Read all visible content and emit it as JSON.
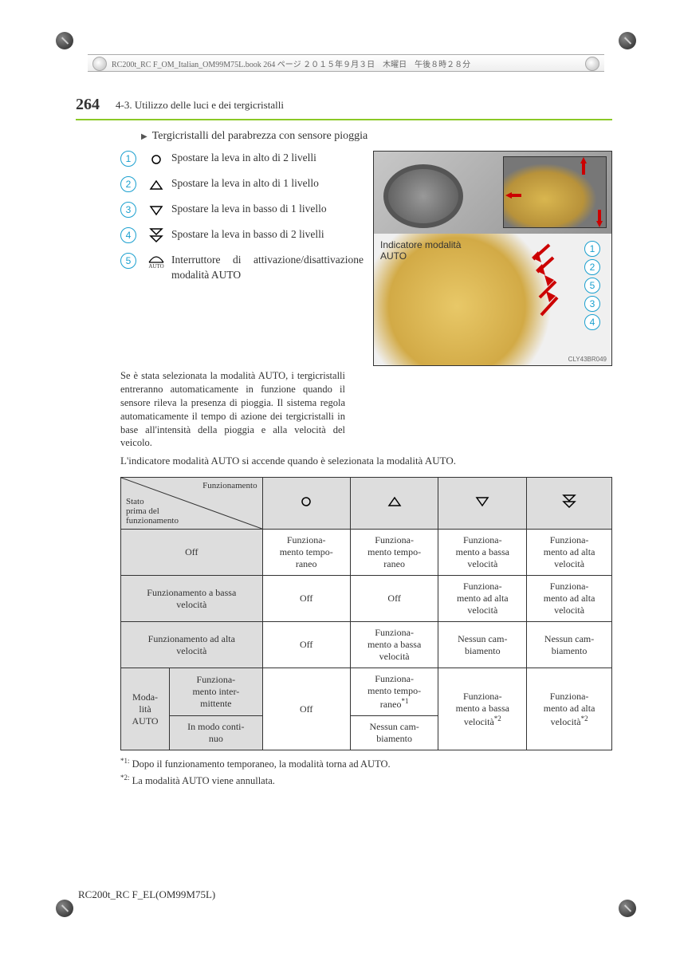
{
  "meta": {
    "print_header": "RC200t_RC F_OM_Italian_OM99M75L.book  264 ページ  ２０１５年９月３日　木曜日　午後８時２８分",
    "footer": "RC200t_RC F_EL(OM99M75L)",
    "figure_code": "CLY43BR049"
  },
  "header": {
    "page_num": "264",
    "section": "4-3. Utilizzo delle luci e dei tergicristalli"
  },
  "subtitle": "Tergicristalli del parabrezza con sensore pioggia",
  "steps": [
    {
      "n": "1",
      "sym": "circle",
      "text": "Spostare la leva in alto di 2 livelli"
    },
    {
      "n": "2",
      "sym": "tri_up",
      "text": "Spostare la leva in alto di 1 livello"
    },
    {
      "n": "3",
      "sym": "tri_down",
      "text": "Spostare la leva in basso di 1 livello"
    },
    {
      "n": "4",
      "sym": "dbl_down",
      "text": "Spostare la leva in basso di 2 livelli"
    },
    {
      "n": "5",
      "sym": "auto",
      "text": "Interruttore di attivazione/disattivazione modalità AUTO"
    }
  ],
  "auto_para": "Se è stata selezionata la modalità AUTO, i tergicristalli entreranno automaticamente in funzione quando il sensore rileva la presenza di pioggia. Il sistema regola automaticamente il tempo di azione dei tergicristalli in base all'intensità della pioggia e alla velocità del veicolo.",
  "auto_para2": "L'indicatore modalità AUTO si accende quando è selezionata la modalità AUTO.",
  "figure": {
    "label_line1": "Indicatore modalità",
    "label_line2": "AUTO"
  },
  "table": {
    "header_diag_top": "Funzionamento",
    "header_diag_bot": "Stato\nprima del\nfunzionamento",
    "col_syms": [
      "circle",
      "tri_up",
      "tri_down",
      "dbl_down"
    ],
    "rows": [
      {
        "head": [
          "Off"
        ],
        "cells": [
          "Funziona-\nmento tempo-\nraneo",
          "Funziona-\nmento tempo-\nraneo",
          "Funziona-\nmento a bassa\nvelocità",
          "Funziona-\nmento ad alta\nvelocità"
        ]
      },
      {
        "head": [
          "Funzionamento a bassa\nvelocità"
        ],
        "cells": [
          "Off",
          "Off",
          "Funziona-\nmento ad alta\nvelocità",
          "Funziona-\nmento ad alta\nvelocità"
        ]
      },
      {
        "head": [
          "Funzionamento ad alta\nvelocità"
        ],
        "cells": [
          "Off",
          "Funziona-\nmento a bassa\nvelocità",
          "Nessun cam-\nbiamento",
          "Nessun cam-\nbiamento"
        ]
      }
    ],
    "auto_row": {
      "left": "Moda-\nlità\nAUTO",
      "sub1": "Funziona-\nmento inter-\nmittente",
      "sub2": "In modo conti-\nnuo",
      "c1": "Off",
      "c2a": "Funziona-\nmento tempo-\nraneo*1",
      "c2b": "Nessun cam-\nbiamento",
      "c3": "Funziona-\nmento a bassa\nvelocità*2",
      "c4": "Funziona-\nmento ad alta\nvelocità*2"
    }
  },
  "footnotes": {
    "f1_mark": "*1:",
    "f1_text": "Dopo il funzionamento temporaneo, la modalità torna ad AUTO.",
    "f2_mark": "*2:",
    "f2_text": "La modalità AUTO viene annullata."
  },
  "style": {
    "accent": "#8ac926",
    "circle_color": "#1ba0cf",
    "grey_bg": "#dddddd"
  }
}
